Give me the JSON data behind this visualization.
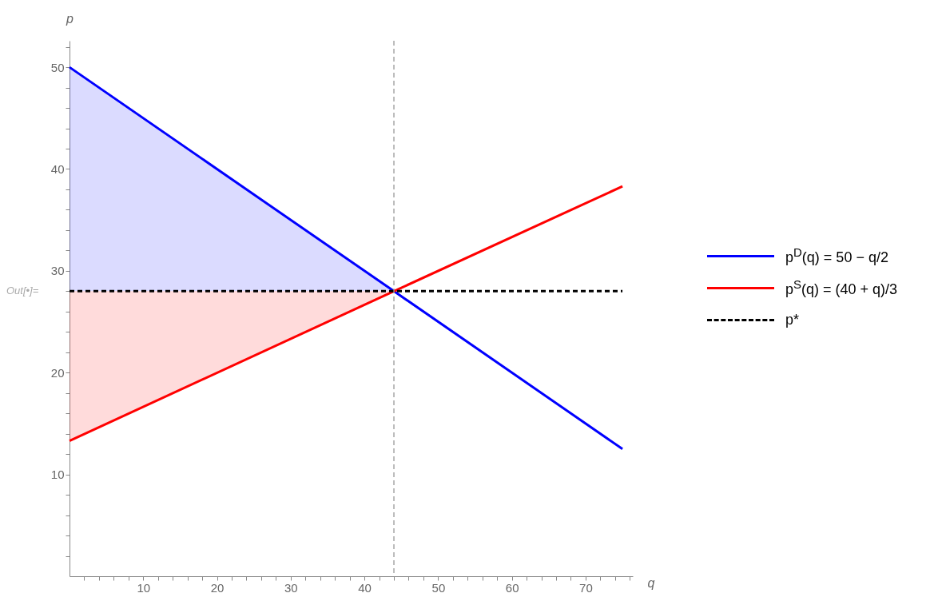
{
  "chart_data": {
    "type": "line",
    "xlabel": "q",
    "ylabel": "p",
    "xlim": [
      0,
      76.4
    ],
    "ylim": [
      0,
      52.6
    ],
    "xticks": [
      {
        "value": 2,
        "label": null
      },
      {
        "value": 4,
        "label": null
      },
      {
        "value": 6,
        "label": null
      },
      {
        "value": 8,
        "label": null
      },
      10,
      {
        "value": 12,
        "label": null
      },
      {
        "value": 14,
        "label": null
      },
      {
        "value": 16,
        "label": null
      },
      {
        "value": 18,
        "label": null
      },
      20,
      {
        "value": 22,
        "label": null
      },
      {
        "value": 24,
        "label": null
      },
      {
        "value": 26,
        "label": null
      },
      {
        "value": 28,
        "label": null
      },
      30,
      {
        "value": 32,
        "label": null
      },
      {
        "value": 34,
        "label": null
      },
      {
        "value": 36,
        "label": null
      },
      {
        "value": 38,
        "label": null
      },
      40,
      {
        "value": 42,
        "label": null
      },
      {
        "value": 44,
        "label": null
      },
      {
        "value": 46,
        "label": null
      },
      {
        "value": 48,
        "label": null
      },
      50,
      {
        "value": 52,
        "label": null
      },
      {
        "value": 54,
        "label": null
      },
      {
        "value": 56,
        "label": null
      },
      {
        "value": 58,
        "label": null
      },
      60,
      {
        "value": 62,
        "label": null
      },
      {
        "value": 64,
        "label": null
      },
      {
        "value": 66,
        "label": null
      },
      {
        "value": 68,
        "label": null
      },
      70,
      {
        "value": 72,
        "label": null
      },
      {
        "value": 74,
        "label": null
      },
      {
        "value": 76,
        "label": null
      }
    ],
    "yticks": [
      {
        "value": 2,
        "label": null
      },
      {
        "value": 4,
        "label": null
      },
      {
        "value": 6,
        "label": null
      },
      {
        "value": 8,
        "label": null
      },
      10,
      {
        "value": 12,
        "label": null
      },
      {
        "value": 14,
        "label": null
      },
      {
        "value": 16,
        "label": null
      },
      {
        "value": 18,
        "label": null
      },
      20,
      {
        "value": 22,
        "label": null
      },
      {
        "value": 24,
        "label": null
      },
      {
        "value": 26,
        "label": null
      },
      {
        "value": 28,
        "label": null
      },
      30,
      {
        "value": 32,
        "label": null
      },
      {
        "value": 34,
        "label": null
      },
      {
        "value": 36,
        "label": null
      },
      {
        "value": 38,
        "label": null
      },
      40,
      {
        "value": 42,
        "label": null
      },
      {
        "value": 44,
        "label": null
      },
      {
        "value": 46,
        "label": null
      },
      {
        "value": 48,
        "label": null
      },
      50,
      {
        "value": 52,
        "label": null
      }
    ],
    "grid": false,
    "legend": "right",
    "series": [
      {
        "name": "p$^{D}$(q) = 50 − q/2",
        "color": "#0000ff",
        "x": [
          0,
          44,
          75
        ],
        "values": [
          50,
          28,
          12.5
        ],
        "lower": [
          28,
          28,
          null
        ],
        "upper": [
          50,
          28,
          null
        ]
      },
      {
        "name": "p$^{S}$(q) = (40 + q)/3",
        "color": "#ff0000",
        "x": [
          0,
          44,
          75
        ],
        "values": [
          13.3,
          28,
          38.3
        ],
        "lower": [
          13.3,
          28,
          null
        ],
        "upper": [
          28,
          28,
          null
        ]
      },
      {
        "name": "p*",
        "color": "#000000",
        "x": [
          0,
          75
        ],
        "values": [
          28,
          28
        ],
        "line_style": "dashed"
      }
    ],
    "ref_lines": [
      {
        "axis": "x",
        "value": 44,
        "label": null,
        "color": "#999999",
        "line_style": "dashed"
      }
    ],
    "annotations": [
      "Out[•]="
    ]
  }
}
